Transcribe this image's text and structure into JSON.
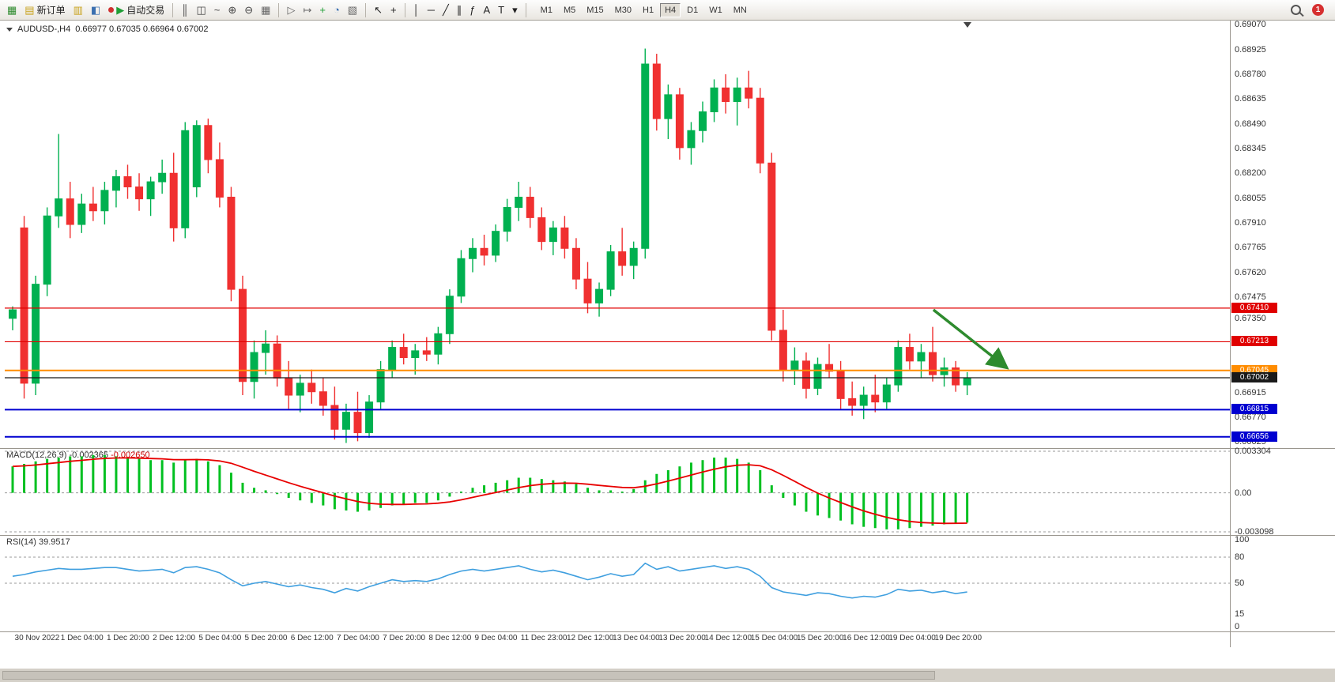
{
  "toolbar": {
    "items": [
      {
        "name": "new-chart",
        "glyph": "▦",
        "color": "#2e8b2e"
      },
      {
        "name": "new-order",
        "glyph": "▤",
        "color": "#c8a21c",
        "label": "新订单"
      },
      {
        "name": "chart-windows",
        "glyph": "▥",
        "color": "#c8a21c"
      },
      {
        "name": "profiles",
        "glyph": "◧",
        "color": "#3a6fb0"
      },
      {
        "name": "autotrading",
        "glyph": "▶",
        "color": "#1f9e35",
        "label": "自动交易",
        "led": "#d03030"
      },
      {
        "sep": true
      },
      {
        "name": "bar-chart-mode",
        "glyph": "║",
        "color": "#444444"
      },
      {
        "name": "candlestick-mode",
        "glyph": "◫",
        "color": "#444444"
      },
      {
        "name": "line-chart-mode",
        "glyph": "~",
        "color": "#444444"
      },
      {
        "name": "zoom-in",
        "glyph": "⊕",
        "color": "#444444"
      },
      {
        "name": "zoom-out",
        "glyph": "⊖",
        "color": "#444444"
      },
      {
        "name": "tile-windows",
        "glyph": "▦",
        "color": "#666666"
      },
      {
        "sep": true
      },
      {
        "name": "auto-scroll",
        "glyph": "▷",
        "color": "#666666"
      },
      {
        "name": "chart-shift",
        "glyph": "↦",
        "color": "#666666"
      },
      {
        "name": "indicators",
        "glyph": "+",
        "color": "#1f9e35"
      },
      {
        "name": "periods",
        "glyph": "◔",
        "color": "#3a6fb0"
      },
      {
        "name": "templates",
        "glyph": "▧",
        "color": "#666666"
      },
      {
        "sep": true
      },
      {
        "name": "cursor-tool",
        "glyph": "↖",
        "color": "#222222"
      },
      {
        "name": "crosshair-tool",
        "glyph": "+",
        "color": "#222222"
      },
      {
        "sep": true
      },
      {
        "name": "vertical-line-tool",
        "glyph": "│",
        "color": "#222222"
      },
      {
        "name": "horizontal-line-tool",
        "glyph": "─",
        "color": "#222222"
      },
      {
        "name": "trendline-tool",
        "glyph": "╱",
        "color": "#222222"
      },
      {
        "name": "channel-tool",
        "glyph": "∥",
        "color": "#222222"
      },
      {
        "name": "fibonacci-tool",
        "glyph": "ƒ",
        "color": "#222222"
      },
      {
        "name": "text-tool",
        "glyph": "A",
        "color": "#222222"
      },
      {
        "name": "label-tool",
        "glyph": "T",
        "color": "#222222"
      },
      {
        "name": "shapes-tool",
        "glyph": "▾",
        "color": "#222222"
      }
    ],
    "timeframes": [
      "M1",
      "M5",
      "M15",
      "M30",
      "H1",
      "H4",
      "D1",
      "W1",
      "MN"
    ],
    "active_timeframe": "H4",
    "notification_badge": "1"
  },
  "chart_data": {
    "type": "candlestick",
    "title": "AUDUSD-,H4",
    "ohlc": "0.66977 0.67035 0.66964 0.67002",
    "up_color": "#00b050",
    "down_color": "#f03030",
    "price_axis": {
      "max": 0.6909,
      "min": 0.6659,
      "ticks": [
        "0.69070",
        "0.68925",
        "0.68780",
        "0.68635",
        "0.68490",
        "0.68345",
        "0.68200",
        "0.68055",
        "0.67910",
        "0.67765",
        "0.67620",
        "0.67475",
        "0.67350",
        "0.66915",
        "0.66770",
        "0.66625"
      ]
    },
    "hlines": [
      {
        "price": 0.6741,
        "label": "0.67410",
        "color": "#e00000",
        "width": 1.2
      },
      {
        "price": 0.67213,
        "label": "0.67213",
        "color": "#e00000",
        "width": 1.2
      },
      {
        "price": 0.67045,
        "label": "0.67045",
        "color": "#ff8c00",
        "width": 2
      },
      {
        "price": 0.67002,
        "label": "0.67002",
        "color": "#1a1a1a",
        "width": 1.2
      },
      {
        "price": 0.66815,
        "label": "0.66815",
        "color": "#0000d0",
        "width": 2
      },
      {
        "price": 0.66656,
        "label": "0.66656",
        "color": "#0000d0",
        "width": 2
      }
    ],
    "arrow": {
      "x1": 0.758,
      "p1": 0.674,
      "x2": 0.818,
      "p2": 0.6706,
      "color": "#2e8b2e"
    },
    "shift_marker_frac": 0.7858,
    "candles": [
      [
        0.6735,
        0.6742,
        0.6728,
        0.674
      ],
      [
        0.6788,
        0.6795,
        0.6688,
        0.6697
      ],
      [
        0.6697,
        0.676,
        0.669,
        0.6755
      ],
      [
        0.6755,
        0.68,
        0.6748,
        0.6795
      ],
      [
        0.6795,
        0.6843,
        0.6788,
        0.6805
      ],
      [
        0.6805,
        0.6815,
        0.6782,
        0.679
      ],
      [
        0.679,
        0.6808,
        0.6785,
        0.6802
      ],
      [
        0.6802,
        0.6812,
        0.6792,
        0.6798
      ],
      [
        0.6798,
        0.6815,
        0.679,
        0.681
      ],
      [
        0.681,
        0.6822,
        0.68,
        0.6818
      ],
      [
        0.6818,
        0.6825,
        0.6805,
        0.6812
      ],
      [
        0.6812,
        0.682,
        0.6798,
        0.6805
      ],
      [
        0.6805,
        0.6818,
        0.6795,
        0.6815
      ],
      [
        0.6815,
        0.6828,
        0.6808,
        0.682
      ],
      [
        0.682,
        0.6832,
        0.678,
        0.6788
      ],
      [
        0.6788,
        0.685,
        0.6782,
        0.6845
      ],
      [
        0.6812,
        0.6851,
        0.6806,
        0.6848
      ],
      [
        0.6848,
        0.6852,
        0.682,
        0.6828
      ],
      [
        0.6828,
        0.6838,
        0.68,
        0.6806
      ],
      [
        0.6806,
        0.6812,
        0.6745,
        0.6752
      ],
      [
        0.6752,
        0.676,
        0.669,
        0.6698
      ],
      [
        0.6698,
        0.6722,
        0.6688,
        0.6715
      ],
      [
        0.6715,
        0.6728,
        0.6702,
        0.672
      ],
      [
        0.672,
        0.6725,
        0.6695,
        0.67
      ],
      [
        0.67,
        0.671,
        0.6682,
        0.669
      ],
      [
        0.669,
        0.6702,
        0.668,
        0.6697
      ],
      [
        0.6697,
        0.6705,
        0.6685,
        0.6692
      ],
      [
        0.6692,
        0.67,
        0.6678,
        0.6684
      ],
      [
        0.6684,
        0.6695,
        0.6664,
        0.667
      ],
      [
        0.667,
        0.6685,
        0.6662,
        0.668
      ],
      [
        0.668,
        0.6692,
        0.6663,
        0.6668
      ],
      [
        0.6668,
        0.669,
        0.6665,
        0.6686
      ],
      [
        0.6686,
        0.671,
        0.6682,
        0.6705
      ],
      [
        0.6705,
        0.6722,
        0.67,
        0.6718
      ],
      [
        0.6718,
        0.6726,
        0.6708,
        0.6712
      ],
      [
        0.6712,
        0.672,
        0.6702,
        0.6716
      ],
      [
        0.6716,
        0.6724,
        0.671,
        0.6714
      ],
      [
        0.6714,
        0.673,
        0.6708,
        0.6726
      ],
      [
        0.6726,
        0.6752,
        0.672,
        0.6748
      ],
      [
        0.6748,
        0.6775,
        0.6744,
        0.677
      ],
      [
        0.677,
        0.6782,
        0.6762,
        0.6776
      ],
      [
        0.6776,
        0.6784,
        0.6766,
        0.6772
      ],
      [
        0.6772,
        0.679,
        0.6768,
        0.6786
      ],
      [
        0.6786,
        0.6805,
        0.678,
        0.68
      ],
      [
        0.68,
        0.6815,
        0.6792,
        0.6806
      ],
      [
        0.6806,
        0.6812,
        0.6788,
        0.6794
      ],
      [
        0.6794,
        0.68,
        0.6775,
        0.678
      ],
      [
        0.678,
        0.6792,
        0.6772,
        0.6788
      ],
      [
        0.6788,
        0.6795,
        0.677,
        0.6776
      ],
      [
        0.6776,
        0.6782,
        0.6752,
        0.6758
      ],
      [
        0.6758,
        0.6768,
        0.6738,
        0.6744
      ],
      [
        0.6744,
        0.6756,
        0.6736,
        0.6752
      ],
      [
        0.6752,
        0.6778,
        0.6748,
        0.6774
      ],
      [
        0.6774,
        0.6788,
        0.676,
        0.6766
      ],
      [
        0.6766,
        0.678,
        0.6758,
        0.6776
      ],
      [
        0.6776,
        0.6893,
        0.677,
        0.6884
      ],
      [
        0.6884,
        0.689,
        0.6845,
        0.6852
      ],
      [
        0.6852,
        0.6872,
        0.684,
        0.6866
      ],
      [
        0.6866,
        0.687,
        0.6828,
        0.6835
      ],
      [
        0.6835,
        0.685,
        0.6825,
        0.6845
      ],
      [
        0.6845,
        0.6862,
        0.6838,
        0.6856
      ],
      [
        0.6856,
        0.6875,
        0.685,
        0.687
      ],
      [
        0.687,
        0.6878,
        0.6855,
        0.6862
      ],
      [
        0.6862,
        0.6876,
        0.6848,
        0.687
      ],
      [
        0.687,
        0.688,
        0.6858,
        0.6864
      ],
      [
        0.6864,
        0.687,
        0.682,
        0.6826
      ],
      [
        0.6826,
        0.6832,
        0.6722,
        0.6728
      ],
      [
        0.6728,
        0.674,
        0.6698,
        0.6705
      ],
      [
        0.6705,
        0.6718,
        0.6696,
        0.671
      ],
      [
        0.671,
        0.6715,
        0.6688,
        0.6694
      ],
      [
        0.6694,
        0.6712,
        0.669,
        0.6708
      ],
      [
        0.6708,
        0.672,
        0.67,
        0.6704
      ],
      [
        0.6704,
        0.671,
        0.6682,
        0.6688
      ],
      [
        0.6688,
        0.6698,
        0.6678,
        0.6684
      ],
      [
        0.6684,
        0.6695,
        0.6676,
        0.669
      ],
      [
        0.669,
        0.6702,
        0.668,
        0.6686
      ],
      [
        0.6686,
        0.67,
        0.6682,
        0.6696
      ],
      [
        0.6696,
        0.6722,
        0.6692,
        0.6718
      ],
      [
        0.6718,
        0.6726,
        0.6705,
        0.671
      ],
      [
        0.671,
        0.672,
        0.67,
        0.6715
      ],
      [
        0.6715,
        0.673,
        0.6698,
        0.6702
      ],
      [
        0.6702,
        0.6712,
        0.6695,
        0.6706
      ],
      [
        0.6706,
        0.671,
        0.6692,
        0.6696
      ],
      [
        0.6696,
        0.67035,
        0.669,
        0.67002
      ]
    ],
    "time_labels": [
      "30 Nov 2022",
      "1 Dec 04:00",
      "1 Dec 20:00",
      "2 Dec 12:00",
      "5 Dec 04:00",
      "5 Dec 20:00",
      "6 Dec 12:00",
      "7 Dec 04:00",
      "7 Dec 20:00",
      "8 Dec 12:00",
      "9 Dec 04:00",
      "11 Dec 23:00",
      "12 Dec 12:00",
      "13 Dec 04:00",
      "13 Dec 20:00",
      "14 Dec 12:00",
      "15 Dec 04:00",
      "15 Dec 20:00",
      "16 Dec 12:00",
      "19 Dec 04:00",
      "19 Dec 20:00"
    ],
    "macd": {
      "label": "MACD(12,26,9)",
      "v1": "-0.002365",
      "v2": "-0.002650",
      "hist_color": "#00c020",
      "signal_color": "#e80000",
      "axis": {
        "max": 0.003304,
        "min": -0.003098,
        "ticks": [
          "0.003304",
          "0.00",
          "-0.003098"
        ]
      },
      "histogram": [
        0.0021,
        0.0023,
        0.0025,
        0.0027,
        0.0028,
        0.0029,
        0.0029,
        0.003,
        0.003,
        0.0029,
        0.0028,
        0.0027,
        0.0026,
        0.0026,
        0.0024,
        0.0026,
        0.0027,
        0.0025,
        0.0022,
        0.0016,
        0.0008,
        0.0004,
        0.0002,
        -0.0001,
        -0.0004,
        -0.0006,
        -0.0008,
        -0.001,
        -0.0013,
        -0.0014,
        -0.0015,
        -0.0014,
        -0.0012,
        -0.001,
        -0.0009,
        -0.0008,
        -0.0008,
        -0.0006,
        -0.0003,
        0.0001,
        0.0004,
        0.0006,
        0.0008,
        0.001,
        0.0012,
        0.0012,
        0.0011,
        0.001,
        0.0009,
        0.0007,
        0.0004,
        0.0002,
        0.0002,
        0.0001,
        0.0003,
        0.001,
        0.0015,
        0.0018,
        0.0021,
        0.0024,
        0.0026,
        0.0028,
        0.0028,
        0.0027,
        0.0024,
        0.0018,
        0.0006,
        -0.0004,
        -0.001,
        -0.0015,
        -0.0018,
        -0.002,
        -0.0022,
        -0.0025,
        -0.0027,
        -0.0028,
        -0.0029,
        -0.0029,
        -0.0028,
        -0.0027,
        -0.0026,
        -0.0025,
        -0.0024,
        -0.002365
      ]
    },
    "rsi": {
      "label": "RSI(14)",
      "value": "39.9517",
      "color": "#3f9fdf",
      "levels": [
        80,
        50
      ],
      "axis_ticks": [
        "100",
        "80",
        "50",
        "15",
        "0"
      ],
      "values": [
        58,
        60,
        63,
        65,
        67,
        66,
        66,
        67,
        68,
        68,
        66,
        64,
        65,
        66,
        62,
        68,
        69,
        66,
        62,
        54,
        47,
        50,
        52,
        49,
        46,
        48,
        45,
        43,
        39,
        44,
        41,
        46,
        50,
        54,
        52,
        53,
        52,
        55,
        60,
        64,
        66,
        64,
        66,
        68,
        70,
        66,
        63,
        65,
        62,
        58,
        54,
        57,
        61,
        58,
        60,
        73,
        66,
        69,
        64,
        66,
        68,
        70,
        67,
        69,
        66,
        58,
        45,
        40,
        38,
        36,
        39,
        38,
        35,
        33,
        35,
        34,
        37,
        43,
        41,
        42,
        39,
        41,
        38,
        39.95
      ]
    }
  }
}
